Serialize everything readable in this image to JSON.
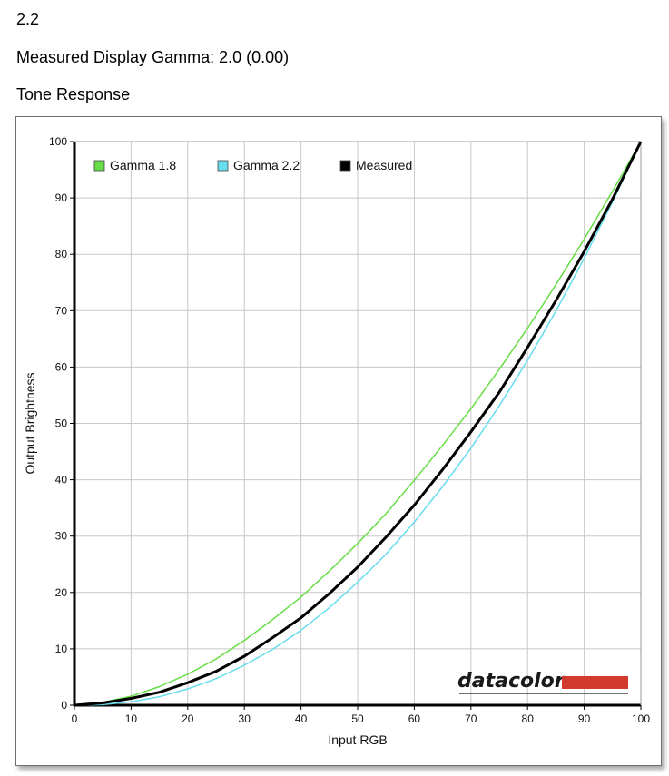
{
  "header": {
    "gamma_target": "2.2",
    "measured_gamma": "Measured Display Gamma: 2.0 (0.00)",
    "section_title": "Tone Response"
  },
  "brand": {
    "name": "datacolor",
    "bar_color": "#d23a2e"
  },
  "chart_data": {
    "type": "line",
    "xlabel": "Input RGB",
    "ylabel": "Output Brightness",
    "xlim": [
      0,
      100
    ],
    "ylim": [
      0,
      100
    ],
    "xticks": [
      0,
      10,
      20,
      30,
      40,
      50,
      60,
      70,
      80,
      90,
      100
    ],
    "yticks": [
      0,
      10,
      20,
      30,
      40,
      50,
      60,
      70,
      80,
      90,
      100
    ],
    "grid": true,
    "legend": "top-left",
    "series": [
      {
        "name": "Gamma 1.8",
        "color": "#66dd44",
        "x": [
          0,
          5,
          10,
          15,
          20,
          25,
          30,
          35,
          40,
          45,
          50,
          55,
          60,
          65,
          70,
          75,
          80,
          85,
          90,
          95,
          100
        ],
        "y": [
          0,
          0.5,
          1.6,
          3.3,
          5.5,
          8.2,
          11.5,
          15.2,
          19.2,
          23.8,
          28.7,
          34.0,
          39.9,
          46.1,
          52.6,
          59.6,
          66.9,
          74.6,
          82.7,
          91.2,
          100
        ]
      },
      {
        "name": "Gamma 2.2",
        "color": "#66ddee",
        "x": [
          0,
          5,
          10,
          15,
          20,
          25,
          30,
          35,
          40,
          45,
          50,
          55,
          60,
          65,
          70,
          75,
          80,
          85,
          90,
          95,
          100
        ],
        "y": [
          0,
          0.1,
          0.6,
          1.5,
          2.9,
          4.7,
          7.1,
          9.9,
          13.3,
          17.3,
          21.8,
          26.8,
          32.5,
          38.8,
          45.6,
          53.1,
          61.2,
          69.9,
          79.3,
          89.3,
          100
        ]
      },
      {
        "name": "Measured",
        "color": "#000000",
        "x": [
          0,
          5,
          10,
          15,
          20,
          25,
          30,
          35,
          40,
          45,
          50,
          55,
          60,
          65,
          70,
          75,
          80,
          85,
          90,
          95,
          100
        ],
        "y": [
          0,
          0.4,
          1.2,
          2.3,
          4.0,
          6.0,
          8.7,
          12.0,
          15.5,
          19.8,
          24.5,
          29.8,
          35.5,
          41.8,
          48.5,
          55.5,
          63.5,
          71.8,
          80.5,
          89.8,
          100
        ]
      }
    ]
  }
}
